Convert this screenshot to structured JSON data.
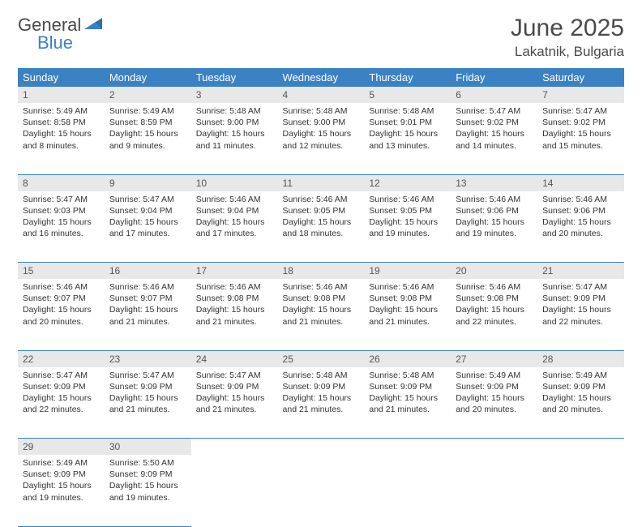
{
  "logo": {
    "text1": "General",
    "text2": "Blue"
  },
  "title": "June 2025",
  "location": "Lakatnik, Bulgaria",
  "colors": {
    "header_bg": "#3b82c4",
    "header_fg": "#ffffff",
    "daynum_bg": "#e8e8e8",
    "border": "#3b82c4",
    "logo_gray": "#4a4a4a",
    "logo_blue": "#3b82c4"
  },
  "weekdays": [
    "Sunday",
    "Monday",
    "Tuesday",
    "Wednesday",
    "Thursday",
    "Friday",
    "Saturday"
  ],
  "weeks": [
    [
      {
        "n": "1",
        "sr": "5:49 AM",
        "ss": "8:58 PM",
        "dl": "15 hours and 8 minutes."
      },
      {
        "n": "2",
        "sr": "5:49 AM",
        "ss": "8:59 PM",
        "dl": "15 hours and 9 minutes."
      },
      {
        "n": "3",
        "sr": "5:48 AM",
        "ss": "9:00 PM",
        "dl": "15 hours and 11 minutes."
      },
      {
        "n": "4",
        "sr": "5:48 AM",
        "ss": "9:00 PM",
        "dl": "15 hours and 12 minutes."
      },
      {
        "n": "5",
        "sr": "5:48 AM",
        "ss": "9:01 PM",
        "dl": "15 hours and 13 minutes."
      },
      {
        "n": "6",
        "sr": "5:47 AM",
        "ss": "9:02 PM",
        "dl": "15 hours and 14 minutes."
      },
      {
        "n": "7",
        "sr": "5:47 AM",
        "ss": "9:02 PM",
        "dl": "15 hours and 15 minutes."
      }
    ],
    [
      {
        "n": "8",
        "sr": "5:47 AM",
        "ss": "9:03 PM",
        "dl": "15 hours and 16 minutes."
      },
      {
        "n": "9",
        "sr": "5:47 AM",
        "ss": "9:04 PM",
        "dl": "15 hours and 17 minutes."
      },
      {
        "n": "10",
        "sr": "5:46 AM",
        "ss": "9:04 PM",
        "dl": "15 hours and 17 minutes."
      },
      {
        "n": "11",
        "sr": "5:46 AM",
        "ss": "9:05 PM",
        "dl": "15 hours and 18 minutes."
      },
      {
        "n": "12",
        "sr": "5:46 AM",
        "ss": "9:05 PM",
        "dl": "15 hours and 19 minutes."
      },
      {
        "n": "13",
        "sr": "5:46 AM",
        "ss": "9:06 PM",
        "dl": "15 hours and 19 minutes."
      },
      {
        "n": "14",
        "sr": "5:46 AM",
        "ss": "9:06 PM",
        "dl": "15 hours and 20 minutes."
      }
    ],
    [
      {
        "n": "15",
        "sr": "5:46 AM",
        "ss": "9:07 PM",
        "dl": "15 hours and 20 minutes."
      },
      {
        "n": "16",
        "sr": "5:46 AM",
        "ss": "9:07 PM",
        "dl": "15 hours and 21 minutes."
      },
      {
        "n": "17",
        "sr": "5:46 AM",
        "ss": "9:08 PM",
        "dl": "15 hours and 21 minutes."
      },
      {
        "n": "18",
        "sr": "5:46 AM",
        "ss": "9:08 PM",
        "dl": "15 hours and 21 minutes."
      },
      {
        "n": "19",
        "sr": "5:46 AM",
        "ss": "9:08 PM",
        "dl": "15 hours and 21 minutes."
      },
      {
        "n": "20",
        "sr": "5:46 AM",
        "ss": "9:08 PM",
        "dl": "15 hours and 22 minutes."
      },
      {
        "n": "21",
        "sr": "5:47 AM",
        "ss": "9:09 PM",
        "dl": "15 hours and 22 minutes."
      }
    ],
    [
      {
        "n": "22",
        "sr": "5:47 AM",
        "ss": "9:09 PM",
        "dl": "15 hours and 22 minutes."
      },
      {
        "n": "23",
        "sr": "5:47 AM",
        "ss": "9:09 PM",
        "dl": "15 hours and 21 minutes."
      },
      {
        "n": "24",
        "sr": "5:47 AM",
        "ss": "9:09 PM",
        "dl": "15 hours and 21 minutes."
      },
      {
        "n": "25",
        "sr": "5:48 AM",
        "ss": "9:09 PM",
        "dl": "15 hours and 21 minutes."
      },
      {
        "n": "26",
        "sr": "5:48 AM",
        "ss": "9:09 PM",
        "dl": "15 hours and 21 minutes."
      },
      {
        "n": "27",
        "sr": "5:49 AM",
        "ss": "9:09 PM",
        "dl": "15 hours and 20 minutes."
      },
      {
        "n": "28",
        "sr": "5:49 AM",
        "ss": "9:09 PM",
        "dl": "15 hours and 20 minutes."
      }
    ],
    [
      {
        "n": "29",
        "sr": "5:49 AM",
        "ss": "9:09 PM",
        "dl": "15 hours and 19 minutes."
      },
      {
        "n": "30",
        "sr": "5:50 AM",
        "ss": "9:09 PM",
        "dl": "15 hours and 19 minutes."
      },
      null,
      null,
      null,
      null,
      null
    ]
  ],
  "labels": {
    "sunrise": "Sunrise:",
    "sunset": "Sunset:",
    "daylight": "Daylight:"
  }
}
